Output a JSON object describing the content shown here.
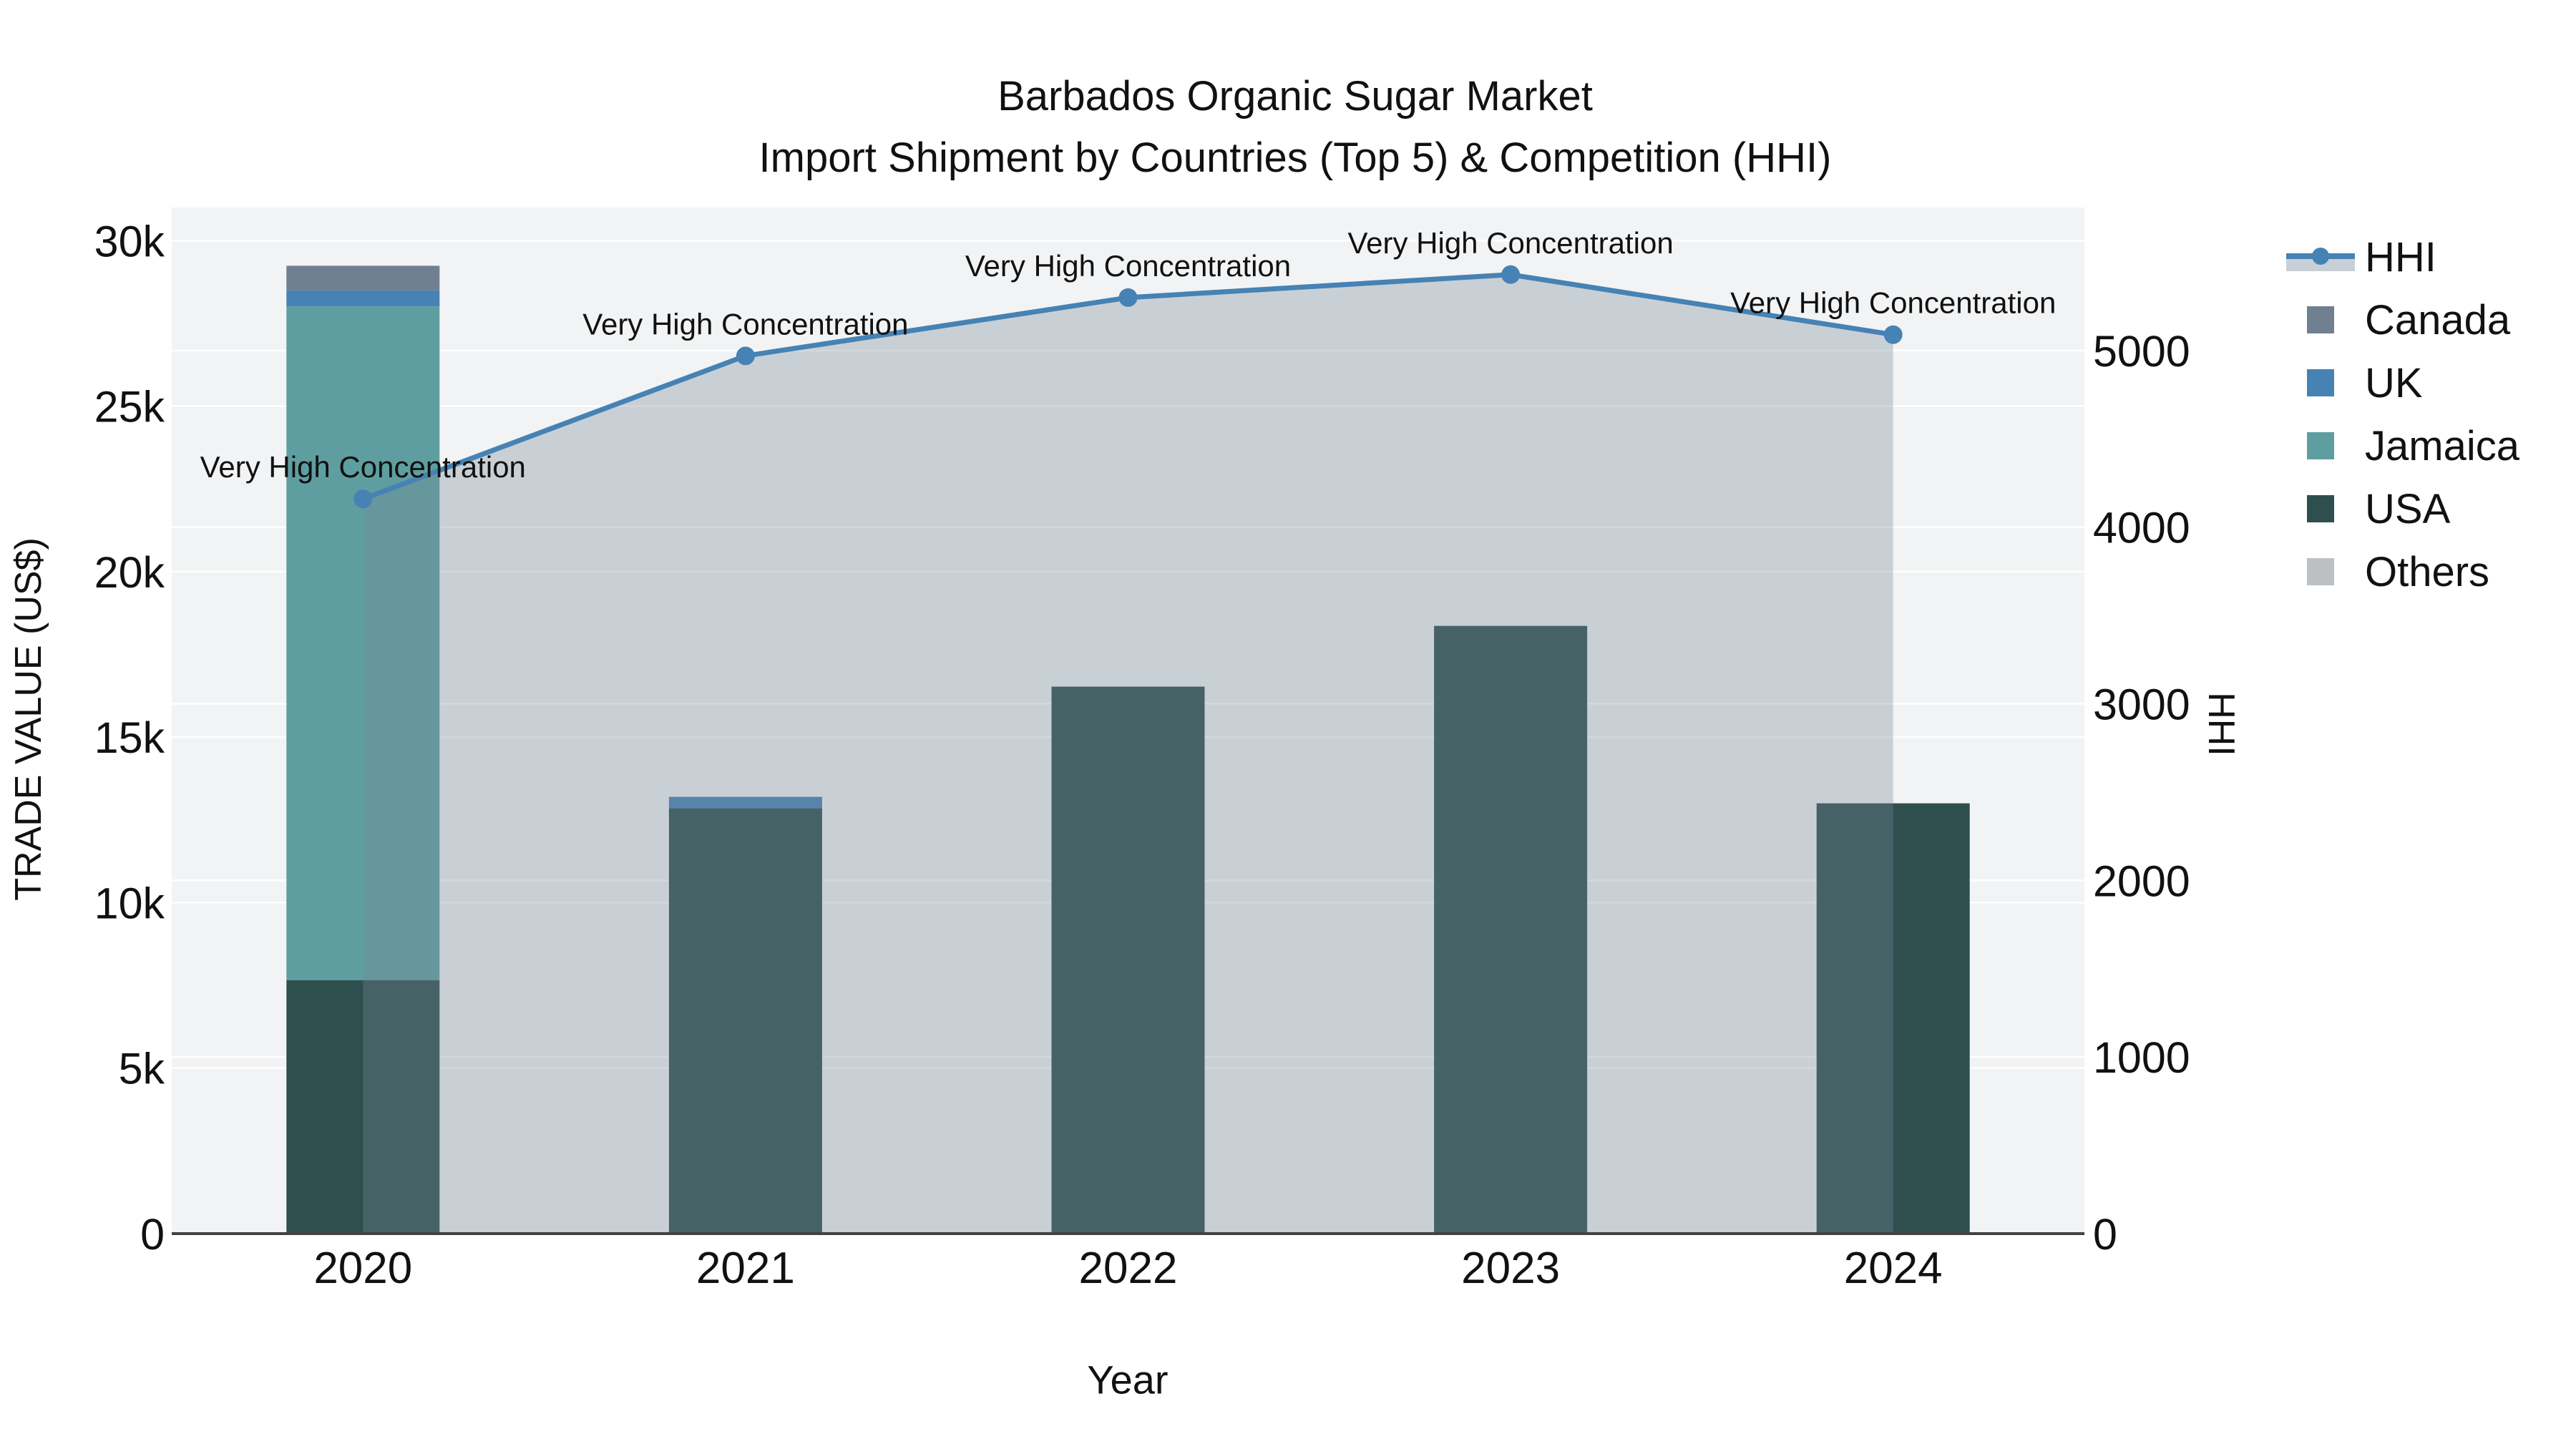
{
  "title": {
    "line1": "Barbados Organic Sugar Market",
    "line2": "Import Shipment by Countries (Top 5) & Competition (HHI)"
  },
  "axes": {
    "left_title": "TRADE VALUE (US$)",
    "right_title": "HHI",
    "x_title": "Year"
  },
  "legend": {
    "items": [
      {
        "label": "HHI",
        "type": "line",
        "color": "#4682B4"
      },
      {
        "label": "Canada",
        "type": "square",
        "color": "#708090"
      },
      {
        "label": "UK",
        "type": "square",
        "color": "#4682B4"
      },
      {
        "label": "Jamaica",
        "type": "square",
        "color": "#5F9EA0"
      },
      {
        "label": "USA",
        "type": "square",
        "color": "#2F4F4F"
      },
      {
        "label": "Others",
        "type": "square",
        "color": "#BDC0C2"
      }
    ]
  },
  "chart_data": {
    "type": "bar",
    "subtype": "stacked-bar-with-line",
    "categories": [
      "2020",
      "2021",
      "2022",
      "2023",
      "2024"
    ],
    "series": [
      {
        "name": "USA",
        "color": "#2F4F4F",
        "values": [
          7660,
          12850,
          16525,
          18360,
          13000
        ]
      },
      {
        "name": "Jamaica",
        "color": "#5F9EA0",
        "values": [
          20350,
          0,
          0,
          0,
          0
        ]
      },
      {
        "name": "UK",
        "color": "#4682B4",
        "values": [
          480,
          345,
          0,
          0,
          0
        ]
      },
      {
        "name": "Canada",
        "color": "#708090",
        "values": [
          750,
          0,
          0,
          0,
          0
        ]
      },
      {
        "name": "Others",
        "color": "#BDC0C2",
        "values": [
          0,
          0,
          0,
          0,
          0
        ]
      }
    ],
    "line": {
      "name": "HHI",
      "color": "#4682B4",
      "area_fill": "rgba(119,136,153,0.33)",
      "values": [
        4160,
        4970,
        5300,
        5430,
        5090
      ]
    },
    "annotations": [
      "Very High Concentration",
      "Very High Concentration",
      "Very High Concentration",
      "Very High Concentration",
      "Very High Concentration"
    ],
    "title": "Barbados Organic Sugar Market Import Shipment by Countries (Top 5) & Competition (HHI)",
    "xlabel": "Year",
    "ylabel": "TRADE VALUE (US$)",
    "ylabel_right": "HHI",
    "left_axis": {
      "max": 31000,
      "ticks": [
        {
          "label": "0",
          "v": 0
        },
        {
          "label": "5k",
          "v": 5000
        },
        {
          "label": "10k",
          "v": 10000
        },
        {
          "label": "15k",
          "v": 15000
        },
        {
          "label": "20k",
          "v": 20000
        },
        {
          "label": "25k",
          "v": 25000
        },
        {
          "label": "30k",
          "v": 30000
        }
      ]
    },
    "right_axis": {
      "max": 5810,
      "ticks": [
        {
          "label": "0",
          "v": 0
        },
        {
          "label": "1000",
          "v": 1000
        },
        {
          "label": "2000",
          "v": 2000
        },
        {
          "label": "3000",
          "v": 3000
        },
        {
          "label": "4000",
          "v": 4000
        },
        {
          "label": "5000",
          "v": 5000
        }
      ]
    },
    "grid": true,
    "legend_position": "right",
    "plot_bg": "#f2f3f4",
    "grid_color": "#ffffff",
    "axisline_color": "#424242",
    "text_color": "#111111"
  }
}
